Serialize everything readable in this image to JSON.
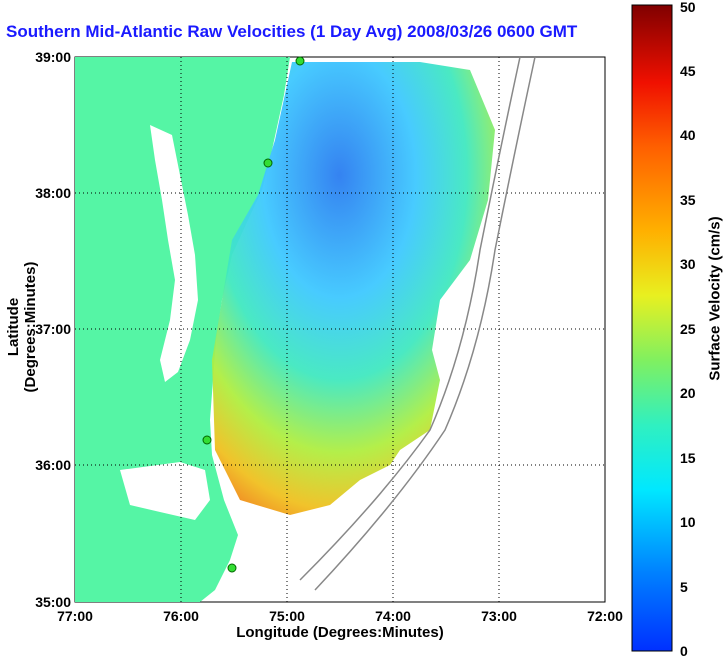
{
  "title": "Southern Mid-Atlantic Raw Velocities (1 Day Avg) 2008/03/26 0600 GMT",
  "x_axis_label": "Longitude (Degrees:Minutes)",
  "y_axis_label": "Latitude (Degrees:Minutes)",
  "colorbar_label": "Surface Velocity (cm/s)",
  "x_ticks": [
    "77:00",
    "76:00",
    "75:00",
    "74:00",
    "73:00",
    "72:00"
  ],
  "y_ticks": [
    "39:00",
    "38:00",
    "37:00",
    "36:00",
    "35:00"
  ],
  "colorbar_ticks": [
    "0",
    "5",
    "10",
    "15",
    "20",
    "25",
    "30",
    "35",
    "40",
    "45",
    "50"
  ],
  "colors": {
    "land": "#55f5a5",
    "title": "#1a1aff",
    "station": "#33dd33"
  }
}
